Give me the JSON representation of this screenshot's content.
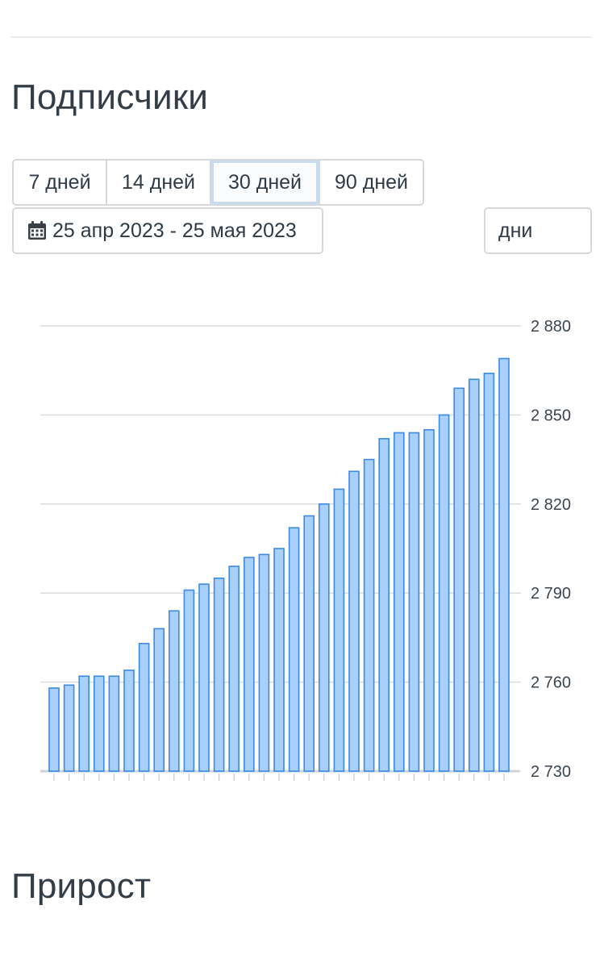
{
  "titles": {
    "subscribers": "Подписчики",
    "growth": "Прирост"
  },
  "range_buttons": [
    "7 дней",
    "14 дней",
    "30 дней",
    "90 дней"
  ],
  "active_range": "30 дней",
  "date_range": {
    "icon": "calendar-icon",
    "label": "25 апр 2023 - 25 мая 2023"
  },
  "period_select": {
    "value": "дни"
  },
  "colors": {
    "bar_fill": "#a8d0fa",
    "bar_stroke": "#3b8ae6",
    "grid": "#d9dcdf",
    "text": "#2f3a44"
  },
  "chart_data": {
    "type": "bar",
    "title": "",
    "xlabel": "",
    "ylabel": "",
    "ylim": [
      2730,
      2880
    ],
    "yticks": [
      2730,
      2760,
      2790,
      2820,
      2850,
      2880
    ],
    "ytick_labels": [
      "2 730",
      "2 760",
      "2 790",
      "2 820",
      "2 850",
      "2 880"
    ],
    "y_axis_position": "right",
    "grid": true,
    "values": [
      2758,
      2759,
      2762,
      2762,
      2762,
      2764,
      2773,
      2778,
      2784,
      2791,
      2793,
      2795,
      2799,
      2802,
      2803,
      2805,
      2812,
      2816,
      2820,
      2825,
      2831,
      2835,
      2842,
      2844,
      2844,
      2845,
      2850,
      2859,
      2862,
      2864,
      2869
    ]
  }
}
